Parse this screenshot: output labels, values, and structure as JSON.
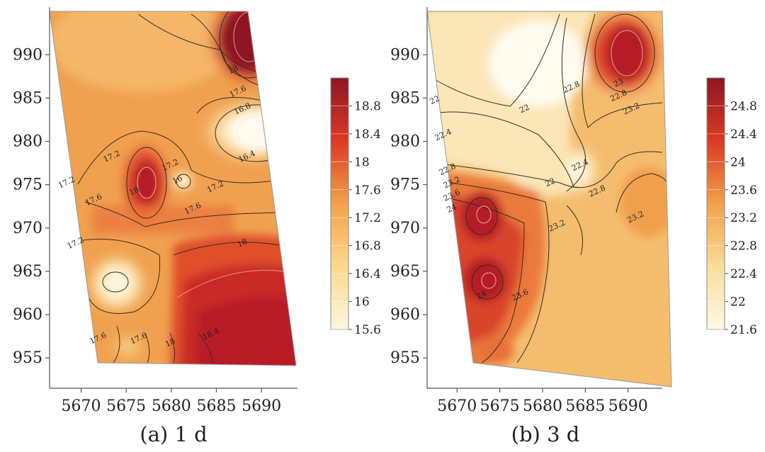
{
  "chart_data": [
    {
      "type": "heatmap",
      "subtype": "filled contour map",
      "caption": "(a) 1 d",
      "title": "",
      "xlabel": "",
      "ylabel": "",
      "x_ticks": [
        5670,
        5675,
        5680,
        5685,
        5690
      ],
      "y_ticks": [
        990,
        985,
        980,
        975,
        970,
        965,
        960,
        955
      ],
      "xlim": [
        5666.5,
        5694
      ],
      "ylim": [
        951.5,
        995.5
      ],
      "domain_polygon": [
        [
          5666.5,
          995
        ],
        [
          5688,
          995
        ],
        [
          5693.5,
          952.5
        ],
        [
          5671,
          954.5
        ]
      ],
      "colorbar": {
        "ticks": [
          "18.8",
          "18.4",
          "18",
          "17.6",
          "17.2",
          "16.8",
          "16.4",
          "16",
          "15.6"
        ],
        "range": [
          15.6,
          19.2
        ],
        "colors": [
          "#fdf6df",
          "#f9d98e",
          "#f2a14a",
          "#db3a25",
          "#8e1623"
        ]
      },
      "contour_labels": [
        {
          "text": "17.2",
          "x": 5668.5,
          "y": 975
        },
        {
          "text": "17.6",
          "x": 5671.5,
          "y": 973
        },
        {
          "text": "17.2",
          "x": 5673.5,
          "y": 978
        },
        {
          "text": "18",
          "x": 5676,
          "y": 974
        },
        {
          "text": "17.2",
          "x": 5680,
          "y": 977
        },
        {
          "text": "16",
          "x": 5680.8,
          "y": 975.3
        },
        {
          "text": "17.2",
          "x": 5685,
          "y": 974.5
        },
        {
          "text": "17.6",
          "x": 5682.5,
          "y": 972
        },
        {
          "text": "17.2",
          "x": 5669.5,
          "y": 968
        },
        {
          "text": "18",
          "x": 5688,
          "y": 968
        },
        {
          "text": "16.4",
          "x": 5688.5,
          "y": 978
        },
        {
          "text": "16.8",
          "x": 5688,
          "y": 983.5
        },
        {
          "text": "17.6",
          "x": 5687.5,
          "y": 985.5
        },
        {
          "text": "18",
          "x": 5687,
          "y": 988
        },
        {
          "text": "17.6",
          "x": 5672,
          "y": 957
        },
        {
          "text": "17.6",
          "x": 5676.5,
          "y": 957
        },
        {
          "text": "18",
          "x": 5680,
          "y": 956.5
        },
        {
          "text": "18.4",
          "x": 5684.5,
          "y": 957.5
        }
      ]
    },
    {
      "type": "heatmap",
      "subtype": "filled contour map",
      "caption": "(b) 3 d",
      "title": "",
      "xlabel": "",
      "ylabel": "",
      "x_ticks": [
        5670,
        5675,
        5680,
        5685,
        5690
      ],
      "y_ticks": [
        990,
        985,
        980,
        975,
        970,
        965,
        960,
        955
      ],
      "xlim": [
        5666.5,
        5694
      ],
      "ylim": [
        951.5,
        995.5
      ],
      "domain_polygon": [
        [
          5666.5,
          995
        ],
        [
          5692.5,
          995
        ],
        [
          5693.5,
          952.5
        ],
        [
          5671,
          954.5
        ]
      ],
      "colorbar": {
        "ticks": [
          "24.8",
          "24.4",
          "24",
          "23.6",
          "23.2",
          "22.8",
          "22.4",
          "22",
          "21.6"
        ],
        "range": [
          21.6,
          25.2
        ],
        "colors": [
          "#fdf8e6",
          "#f9dd9a",
          "#f2a14a",
          "#db3a25",
          "#8e1623"
        ]
      },
      "contour_labels": [
        {
          "text": "22",
          "x": 5667.5,
          "y": 984.5
        },
        {
          "text": "22",
          "x": 5678,
          "y": 983.5
        },
        {
          "text": "22.4",
          "x": 5668.5,
          "y": 980.5
        },
        {
          "text": "22.8",
          "x": 5683.5,
          "y": 986
        },
        {
          "text": "23.2",
          "x": 5690.5,
          "y": 983.5
        },
        {
          "text": "22.8",
          "x": 5689,
          "y": 985
        },
        {
          "text": "23",
          "x": 5689,
          "y": 986.5
        },
        {
          "text": "22.4",
          "x": 5684.5,
          "y": 977
        },
        {
          "text": "22.8",
          "x": 5669,
          "y": 976.5
        },
        {
          "text": "23.2",
          "x": 5669.5,
          "y": 975
        },
        {
          "text": "23.6",
          "x": 5669.5,
          "y": 973.5
        },
        {
          "text": "24",
          "x": 5669.5,
          "y": 972
        },
        {
          "text": "22.8",
          "x": 5686.5,
          "y": 974
        },
        {
          "text": "23.2",
          "x": 5691,
          "y": 971
        },
        {
          "text": "23.2",
          "x": 5681.8,
          "y": 970
        },
        {
          "text": "22",
          "x": 5681,
          "y": 975
        },
        {
          "text": "24",
          "x": 5673,
          "y": 962
        },
        {
          "text": "23.6",
          "x": 5677.5,
          "y": 962
        }
      ]
    }
  ]
}
